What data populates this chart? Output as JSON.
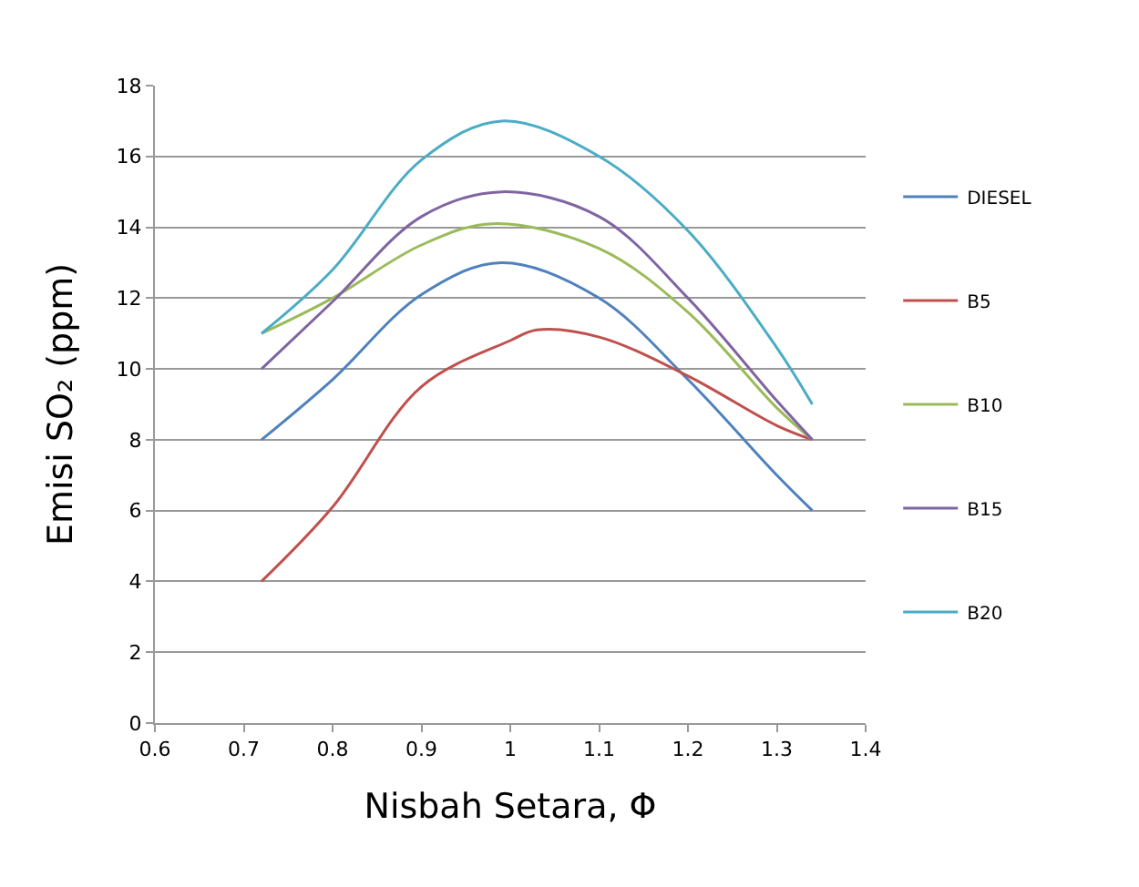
{
  "chart_data": {
    "type": "line",
    "xlabel": "Nisbah Setara, Φ",
    "ylabel": "Emisi SO₂ (ppm)",
    "xlim": [
      0.6,
      1.4
    ],
    "xticks": [
      0.6,
      0.7,
      0.8,
      0.9,
      1,
      1.1,
      1.2,
      1.3,
      1.4
    ],
    "ylim": [
      0,
      18
    ],
    "yticks": [
      0,
      2,
      4,
      6,
      8,
      10,
      12,
      14,
      16,
      18
    ],
    "grid": "y",
    "legend": "right",
    "marker": "none",
    "line_style": "solid",
    "series": [
      {
        "name": "DIESEL",
        "color": "#4f81bd",
        "x": [
          0.72,
          0.8,
          0.9,
          0.99,
          1.1,
          1.2,
          1.3,
          1.34
        ],
        "values": [
          8,
          9.7,
          12.1,
          13,
          12,
          9.7,
          7,
          6
        ]
      },
      {
        "name": "B5",
        "color": "#c0504d",
        "x": [
          0.72,
          0.8,
          0.9,
          1,
          1.03,
          1.1,
          1.2,
          1.3,
          1.34
        ],
        "values": [
          4,
          6.1,
          9.5,
          10.8,
          11.1,
          10.9,
          9.8,
          8.4,
          8
        ]
      },
      {
        "name": "B10",
        "color": "#9bbb59",
        "x": [
          0.72,
          0.8,
          0.9,
          0.98,
          1.1,
          1.2,
          1.3,
          1.34
        ],
        "values": [
          11,
          12,
          13.5,
          14.1,
          13.4,
          11.6,
          8.9,
          8
        ]
      },
      {
        "name": "B15",
        "color": "#8064a2",
        "x": [
          0.72,
          0.8,
          0.9,
          0.99,
          1.1,
          1.2,
          1.3,
          1.34
        ],
        "values": [
          10,
          11.9,
          14.3,
          15,
          14.3,
          12,
          9.1,
          8
        ]
      },
      {
        "name": "B20",
        "color": "#4bacc6",
        "x": [
          0.72,
          0.8,
          0.9,
          0.99,
          1.1,
          1.2,
          1.3,
          1.34
        ],
        "values": [
          11,
          12.8,
          15.9,
          17,
          16,
          13.9,
          10.6,
          9
        ]
      }
    ]
  }
}
